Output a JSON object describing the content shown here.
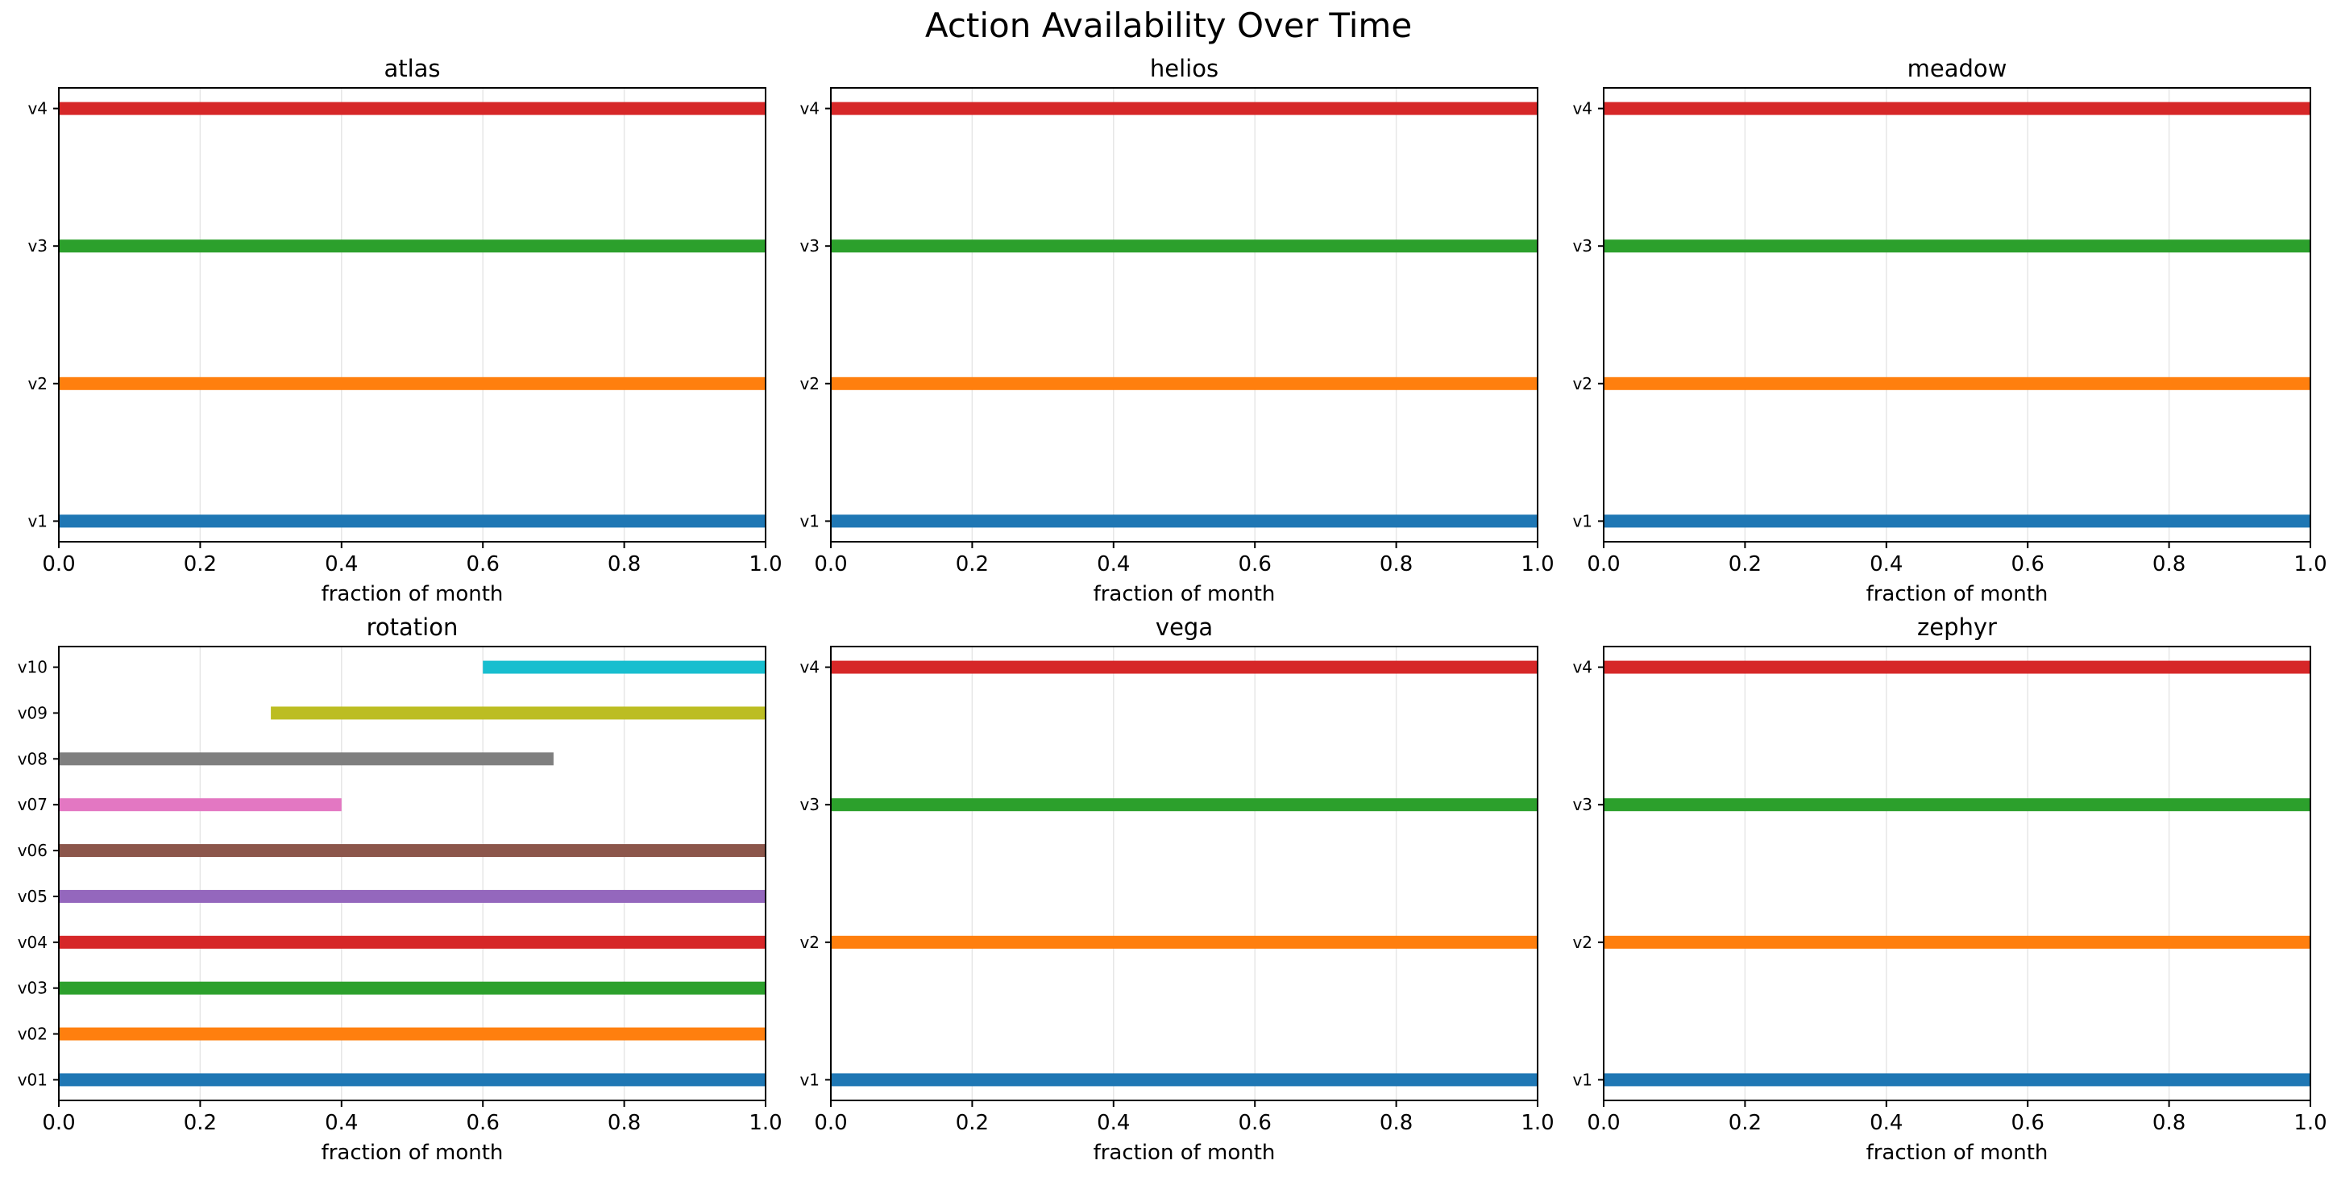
{
  "figure": {
    "title": "Action Availability Over Time"
  },
  "chart_data": [
    {
      "type": "bar",
      "orientation": "horizontal-range",
      "title": "atlas",
      "xlabel": "fraction of month",
      "ylabel": "",
      "xlim": [
        0,
        1
      ],
      "xticks": [
        "0.0",
        "0.2",
        "0.4",
        "0.6",
        "0.8",
        "1.0"
      ],
      "grid": "vertical",
      "bars": [
        {
          "label": "v1",
          "start": 0.0,
          "end": 1.0,
          "color": "#1f77b4"
        },
        {
          "label": "v2",
          "start": 0.0,
          "end": 1.0,
          "color": "#ff7f0e"
        },
        {
          "label": "v3",
          "start": 0.0,
          "end": 1.0,
          "color": "#2ca02c"
        },
        {
          "label": "v4",
          "start": 0.0,
          "end": 1.0,
          "color": "#d62728"
        }
      ]
    },
    {
      "type": "bar",
      "orientation": "horizontal-range",
      "title": "helios",
      "xlabel": "fraction of month",
      "ylabel": "",
      "xlim": [
        0,
        1
      ],
      "xticks": [
        "0.0",
        "0.2",
        "0.4",
        "0.6",
        "0.8",
        "1.0"
      ],
      "grid": "vertical",
      "bars": [
        {
          "label": "v1",
          "start": 0.0,
          "end": 1.0,
          "color": "#1f77b4"
        },
        {
          "label": "v2",
          "start": 0.0,
          "end": 1.0,
          "color": "#ff7f0e"
        },
        {
          "label": "v3",
          "start": 0.0,
          "end": 1.0,
          "color": "#2ca02c"
        },
        {
          "label": "v4",
          "start": 0.0,
          "end": 1.0,
          "color": "#d62728"
        }
      ]
    },
    {
      "type": "bar",
      "orientation": "horizontal-range",
      "title": "meadow",
      "xlabel": "fraction of month",
      "ylabel": "",
      "xlim": [
        0,
        1
      ],
      "xticks": [
        "0.0",
        "0.2",
        "0.4",
        "0.6",
        "0.8",
        "1.0"
      ],
      "grid": "vertical",
      "bars": [
        {
          "label": "v1",
          "start": 0.0,
          "end": 1.0,
          "color": "#1f77b4"
        },
        {
          "label": "v2",
          "start": 0.0,
          "end": 1.0,
          "color": "#ff7f0e"
        },
        {
          "label": "v3",
          "start": 0.0,
          "end": 1.0,
          "color": "#2ca02c"
        },
        {
          "label": "v4",
          "start": 0.0,
          "end": 1.0,
          "color": "#d62728"
        }
      ]
    },
    {
      "type": "bar",
      "orientation": "horizontal-range",
      "title": "rotation",
      "xlabel": "fraction of month",
      "ylabel": "",
      "xlim": [
        0,
        1
      ],
      "xticks": [
        "0.0",
        "0.2",
        "0.4",
        "0.6",
        "0.8",
        "1.0"
      ],
      "grid": "vertical",
      "bars": [
        {
          "label": "v01",
          "start": 0.0,
          "end": 1.0,
          "color": "#1f77b4"
        },
        {
          "label": "v02",
          "start": 0.0,
          "end": 1.0,
          "color": "#ff7f0e"
        },
        {
          "label": "v03",
          "start": 0.0,
          "end": 1.0,
          "color": "#2ca02c"
        },
        {
          "label": "v04",
          "start": 0.0,
          "end": 1.0,
          "color": "#d62728"
        },
        {
          "label": "v05",
          "start": 0.0,
          "end": 1.0,
          "color": "#9467bd"
        },
        {
          "label": "v06",
          "start": 0.0,
          "end": 1.0,
          "color": "#8c564b"
        },
        {
          "label": "v07",
          "start": 0.0,
          "end": 0.4,
          "color": "#e377c2"
        },
        {
          "label": "v08",
          "start": 0.0,
          "end": 0.7,
          "color": "#7f7f7f"
        },
        {
          "label": "v09",
          "start": 0.3,
          "end": 1.0,
          "color": "#bcbd22"
        },
        {
          "label": "v10",
          "start": 0.6,
          "end": 1.0,
          "color": "#17becf"
        }
      ]
    },
    {
      "type": "bar",
      "orientation": "horizontal-range",
      "title": "vega",
      "xlabel": "fraction of month",
      "ylabel": "",
      "xlim": [
        0,
        1
      ],
      "xticks": [
        "0.0",
        "0.2",
        "0.4",
        "0.6",
        "0.8",
        "1.0"
      ],
      "grid": "vertical",
      "bars": [
        {
          "label": "v1",
          "start": 0.0,
          "end": 1.0,
          "color": "#1f77b4"
        },
        {
          "label": "v2",
          "start": 0.0,
          "end": 1.0,
          "color": "#ff7f0e"
        },
        {
          "label": "v3",
          "start": 0.0,
          "end": 1.0,
          "color": "#2ca02c"
        },
        {
          "label": "v4",
          "start": 0.0,
          "end": 1.0,
          "color": "#d62728"
        }
      ]
    },
    {
      "type": "bar",
      "orientation": "horizontal-range",
      "title": "zephyr",
      "xlabel": "fraction of month",
      "ylabel": "",
      "xlim": [
        0,
        1
      ],
      "xticks": [
        "0.0",
        "0.2",
        "0.4",
        "0.6",
        "0.8",
        "1.0"
      ],
      "grid": "vertical",
      "bars": [
        {
          "label": "v1",
          "start": 0.0,
          "end": 1.0,
          "color": "#1f77b4"
        },
        {
          "label": "v2",
          "start": 0.0,
          "end": 1.0,
          "color": "#ff7f0e"
        },
        {
          "label": "v3",
          "start": 0.0,
          "end": 1.0,
          "color": "#2ca02c"
        },
        {
          "label": "v4",
          "start": 0.0,
          "end": 1.0,
          "color": "#d62728"
        }
      ]
    }
  ]
}
